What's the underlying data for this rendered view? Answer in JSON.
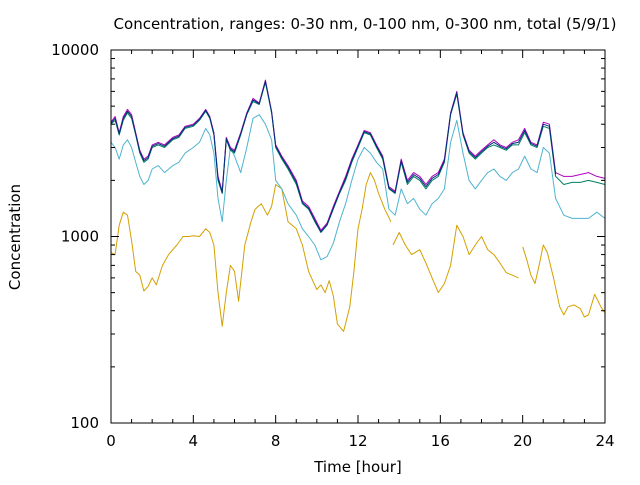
{
  "chart_data": {
    "type": "line",
    "title": "Concentration, ranges: 0-30 nm, 0-100 nm, 0-300 nm, total (5/9/1)",
    "xlabel": "Time [hour]",
    "ylabel": "Concentration",
    "xlim": [
      0,
      24
    ],
    "ylim": [
      100,
      10000
    ],
    "yscale": "log",
    "grid": false,
    "legend": "none",
    "x_ticks": [
      0,
      4,
      8,
      12,
      16,
      20,
      24
    ],
    "x_tick_labels": [
      "0",
      "4",
      "8",
      "12",
      "16",
      "20",
      "24"
    ],
    "y_ticks": [
      100,
      1000,
      10000
    ],
    "y_tick_labels": [
      "100",
      "1000",
      "10000"
    ],
    "colors": {
      "series_0_30nm": "#d4a000",
      "series_0_100nm": "#4fb4d0",
      "series_0_300nm": "#008060",
      "series_total": "#b000c0",
      "overlay_dark": "#00307a"
    },
    "series": [
      {
        "color": "#d4a000",
        "x": [
          0,
          0.2,
          0.4,
          0.6,
          0.8,
          1.0,
          1.2,
          1.4,
          1.6,
          1.8,
          2.0,
          2.2,
          2.5,
          2.8,
          3.0,
          3.2,
          3.5,
          3.8,
          4.0,
          4.3,
          4.6,
          4.8,
          5.0,
          5.2,
          5.4,
          5.6,
          5.8,
          6.0,
          6.2,
          6.5,
          6.8,
          7.0,
          7.3,
          7.6,
          7.8,
          8.0,
          8.3,
          8.6,
          9.0,
          9.3,
          9.6,
          9.8,
          10.0,
          10.2,
          10.4,
          10.6,
          10.8,
          11.0,
          11.3,
          11.6,
          11.8,
          12.0,
          12.2,
          12.4,
          12.6,
          12.8,
          13.0,
          13.3,
          13.6
        ],
        "y": [
          820,
          800,
          1150,
          1350,
          1300,
          950,
          650,
          620,
          510,
          540,
          600,
          550,
          700,
          800,
          850,
          900,
          1000,
          1000,
          1010,
          1000,
          1100,
          1050,
          900,
          500,
          330,
          500,
          700,
          650,
          450,
          900,
          1200,
          1400,
          1500,
          1300,
          1450,
          1900,
          1800,
          1200,
          1100,
          900,
          650,
          580,
          520,
          550,
          500,
          580,
          480,
          340,
          310,
          420,
          650,
          1100,
          1400,
          1900,
          2200,
          2000,
          1700,
          1400,
          1200
        ]
      },
      {
        "color": "#d4a000",
        "x": [
          13.7,
          14.0,
          14.3,
          14.6,
          15.0,
          15.3,
          15.6,
          15.9,
          16.2,
          16.5,
          16.8,
          17.1,
          17.4,
          17.7,
          18.0,
          18.3,
          18.6,
          18.9,
          19.2,
          19.5,
          19.8
        ],
        "y": [
          900,
          1050,
          900,
          800,
          850,
          720,
          600,
          500,
          560,
          700,
          1150,
          1000,
          800,
          900,
          1000,
          850,
          800,
          720,
          640,
          620,
          600
        ]
      },
      {
        "color": "#d4a000",
        "x": [
          20.0,
          20.2,
          20.4,
          20.6,
          20.8,
          21.0,
          21.2,
          21.5,
          21.8,
          22.0,
          22.2,
          22.5,
          22.8,
          23.0,
          23.2,
          23.5,
          23.8,
          24.0
        ],
        "y": [
          880,
          750,
          620,
          560,
          700,
          900,
          820,
          600,
          420,
          380,
          420,
          430,
          410,
          370,
          380,
          490,
          420,
          390
        ]
      },
      {
        "color": "#4fb4d0",
        "x": [
          0,
          0.2,
          0.4,
          0.6,
          0.8,
          1.0,
          1.2,
          1.4,
          1.6,
          1.8,
          2.0,
          2.3,
          2.6,
          3.0,
          3.3,
          3.6,
          4.0,
          4.3,
          4.6,
          4.8,
          5.0,
          5.2,
          5.4,
          5.6,
          5.8,
          6.0,
          6.3,
          6.6,
          6.9,
          7.2,
          7.5,
          7.8,
          8.0,
          8.3,
          8.6,
          9.0,
          9.3,
          9.6,
          9.9,
          10.2,
          10.5,
          10.8,
          11.1,
          11.4,
          11.7,
          12.0,
          12.3,
          12.6,
          12.9,
          13.2,
          13.5,
          13.8,
          14.1,
          14.4,
          14.7,
          15.0,
          15.3,
          15.6,
          15.9,
          16.2,
          16.5,
          16.8,
          17.1,
          17.4,
          17.7,
          18.0,
          18.3,
          18.6,
          18.9,
          19.2,
          19.5,
          19.8,
          20.1,
          20.4,
          20.7,
          21.0,
          21.3,
          21.6,
          22.0,
          22.4,
          22.8,
          23.2,
          23.6,
          24.0
        ],
        "y": [
          3200,
          3000,
          2600,
          3100,
          3300,
          3000,
          2500,
          2100,
          1900,
          2000,
          2300,
          2400,
          2200,
          2400,
          2500,
          2800,
          3000,
          3200,
          3800,
          3500,
          2800,
          1600,
          1200,
          2000,
          3000,
          2700,
          2200,
          3000,
          4300,
          4500,
          4000,
          3300,
          2000,
          1800,
          1500,
          1300,
          1100,
          1000,
          900,
          750,
          780,
          920,
          1200,
          1500,
          2000,
          2600,
          3000,
          2800,
          2500,
          2300,
          1400,
          1300,
          1800,
          1500,
          1600,
          1400,
          1300,
          1500,
          1600,
          1800,
          3200,
          4200,
          2800,
          2000,
          1800,
          2000,
          2200,
          2300,
          2100,
          2000,
          2200,
          2300,
          2700,
          2300,
          2200,
          3000,
          2800,
          1600,
          1300,
          1250,
          1250,
          1250,
          1350,
          1250
        ]
      },
      {
        "color": "#008060",
        "x": [
          0,
          0.2,
          0.4,
          0.6,
          0.8,
          1.0,
          1.2,
          1.4,
          1.6,
          1.8,
          2.0,
          2.3,
          2.6,
          3.0,
          3.3,
          3.6,
          4.0,
          4.3,
          4.6,
          4.8,
          5.0,
          5.2,
          5.4,
          5.6,
          5.8,
          6.0,
          6.3,
          6.6,
          6.9,
          7.2,
          7.5,
          7.8,
          8.0,
          8.3,
          8.6,
          9.0,
          9.3,
          9.6,
          9.9,
          10.2,
          10.5,
          10.8,
          11.1,
          11.4,
          11.7,
          12.0,
          12.3,
          12.6,
          12.9,
          13.2,
          13.5,
          13.8,
          14.1,
          14.4,
          14.7,
          15.0,
          15.3,
          15.6,
          15.9,
          16.2,
          16.5,
          16.8,
          17.1,
          17.4,
          17.7,
          18.0,
          18.3,
          18.6,
          18.9,
          19.2,
          19.5,
          19.8,
          20.1,
          20.4,
          20.7,
          21.0,
          21.3,
          21.6,
          22.0,
          22.4,
          22.8,
          23.2,
          23.6,
          24.0
        ],
        "y": [
          4000,
          4200,
          3500,
          4200,
          4600,
          4300,
          3500,
          2800,
          2500,
          2600,
          3000,
          3100,
          3000,
          3300,
          3400,
          3800,
          3900,
          4200,
          4700,
          4300,
          3500,
          2000,
          1700,
          3300,
          2900,
          2800,
          3500,
          4500,
          5300,
          5100,
          6700,
          4600,
          3000,
          2600,
          2300,
          1900,
          1500,
          1400,
          1200,
          1050,
          1150,
          1400,
          1700,
          2000,
          2500,
          3000,
          3600,
          3500,
          3000,
          2600,
          1800,
          1700,
          2500,
          1900,
          2100,
          2000,
          1800,
          2000,
          2100,
          2500,
          4500,
          5800,
          3500,
          2800,
          2600,
          2800,
          3000,
          3100,
          3000,
          2900,
          3100,
          3100,
          3600,
          3100,
          3000,
          3900,
          3800,
          2100,
          1900,
          1950,
          1950,
          2000,
          1950,
          1900
        ]
      },
      {
        "color": "#b000c0",
        "x": [
          0,
          0.2,
          0.4,
          0.6,
          0.8,
          1.0,
          1.2,
          1.4,
          1.6,
          1.8,
          2.0,
          2.3,
          2.6,
          3.0,
          3.3,
          3.6,
          4.0,
          4.3,
          4.6,
          4.8,
          5.0,
          5.2,
          5.4,
          5.6,
          5.8,
          6.0,
          6.3,
          6.6,
          6.9,
          7.2,
          7.5,
          7.8,
          8.0,
          8.3,
          8.6,
          9.0,
          9.3,
          9.6,
          9.9,
          10.2,
          10.5,
          10.8,
          11.1,
          11.4,
          11.7,
          12.0,
          12.3,
          12.6,
          12.9,
          13.2,
          13.5,
          13.8,
          14.1,
          14.4,
          14.7,
          15.0,
          15.3,
          15.6,
          15.9,
          16.2,
          16.5,
          16.8,
          17.1,
          17.4,
          17.7,
          18.0,
          18.3,
          18.6,
          18.9,
          19.2,
          19.5,
          19.8,
          20.1,
          20.4,
          20.7,
          21.0,
          21.3,
          21.6,
          22.0,
          22.4,
          22.8,
          23.2,
          23.6,
          24.0
        ],
        "y": [
          4100,
          4400,
          3600,
          4400,
          4800,
          4500,
          3600,
          2900,
          2600,
          2700,
          3100,
          3200,
          3100,
          3400,
          3500,
          3900,
          4000,
          4300,
          4800,
          4400,
          3600,
          2100,
          1750,
          3400,
          3000,
          2900,
          3600,
          4600,
          5500,
          5200,
          6900,
          4700,
          3100,
          2700,
          2400,
          2000,
          1550,
          1450,
          1250,
          1080,
          1180,
          1450,
          1750,
          2100,
          2600,
          3100,
          3700,
          3600,
          3100,
          2700,
          1850,
          1750,
          2600,
          2000,
          2200,
          2100,
          1900,
          2100,
          2200,
          2600,
          4600,
          6000,
          3600,
          2900,
          2700,
          2900,
          3100,
          3300,
          3100,
          3000,
          3200,
          3300,
          3800,
          3200,
          3100,
          4100,
          4000,
          2200,
          2100,
          2100,
          2150,
          2200,
          2100,
          2050
        ]
      },
      {
        "color": "#00307a",
        "x": [
          0,
          0.2,
          0.4,
          0.6,
          0.8,
          1.0,
          1.2,
          1.4,
          1.6,
          1.8,
          2.0,
          2.3,
          2.6,
          3.0,
          3.3,
          3.6,
          4.0,
          4.3,
          4.6,
          4.8,
          5.0,
          5.2,
          5.4,
          5.6,
          5.8,
          6.0,
          6.3,
          6.6,
          6.9,
          7.2,
          7.5,
          7.8,
          8.0,
          8.3,
          8.6,
          9.0,
          9.3,
          9.6,
          9.9,
          10.2,
          10.5,
          10.8,
          11.1,
          11.4,
          11.7,
          12.0,
          12.3,
          12.6,
          12.9,
          13.2,
          13.5,
          13.8,
          14.1,
          14.4,
          14.7,
          15.0,
          15.3,
          15.6,
          15.9,
          16.2,
          16.5,
          16.8,
          17.1,
          17.4,
          17.7,
          18.0,
          18.3,
          18.6,
          18.9,
          19.2,
          19.5,
          19.8,
          20.1,
          20.4,
          20.7,
          21.0,
          21.3,
          21.6
        ],
        "y": [
          4050,
          4300,
          3550,
          4300,
          4700,
          4400,
          3550,
          2850,
          2550,
          2650,
          3050,
          3150,
          3050,
          3350,
          3450,
          3850,
          3950,
          4250,
          4750,
          4350,
          3550,
          2050,
          1720,
          3350,
          2950,
          2850,
          3550,
          4550,
          5400,
          5150,
          6800,
          4650,
          3050,
          2650,
          2350,
          1950,
          1520,
          1420,
          1220,
          1060,
          1160,
          1420,
          1720,
          2050,
          2550,
          3050,
          3650,
          3550,
          3050,
          2650,
          1820,
          1720,
          2550,
          1950,
          2150,
          2050,
          1850,
          2050,
          2150,
          2550,
          4550,
          5900,
          3550,
          2850,
          2650,
          2850,
          3050,
          3200,
          3050,
          2950,
          3150,
          3200,
          3700,
          3150,
          3050,
          4000,
          3900,
          2150
        ]
      }
    ]
  }
}
